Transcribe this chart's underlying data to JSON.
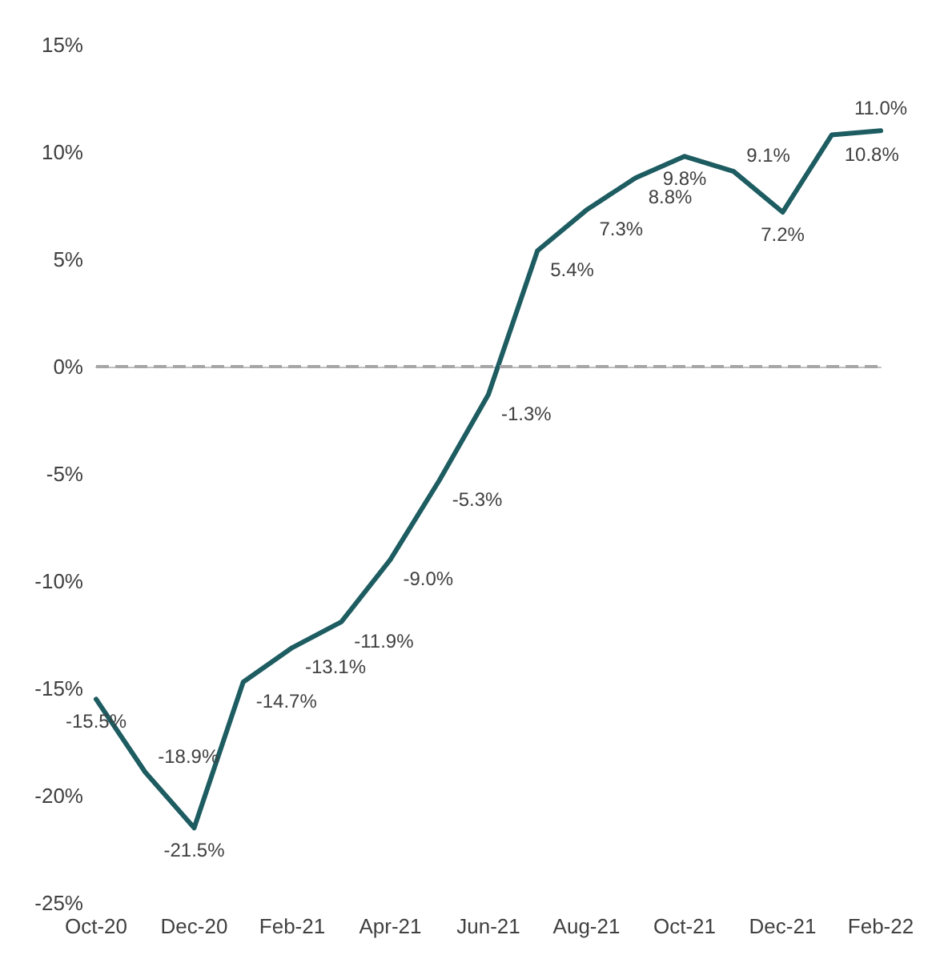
{
  "chart_data": {
    "type": "line",
    "categories": [
      "Oct-20",
      null,
      "Dec-20",
      null,
      "Feb-21",
      null,
      "Apr-21",
      null,
      "Jun-21",
      null,
      "Aug-21",
      null,
      "Oct-21",
      null,
      "Dec-21",
      null,
      "Feb-22"
    ],
    "series": [
      {
        "color": "#1d5c61",
        "values": [
          -15.5,
          -18.9,
          -21.5,
          -14.7,
          -13.1,
          -11.9,
          -9.0,
          -5.3,
          -1.3,
          5.4,
          7.3,
          8.8,
          9.8,
          9.1,
          7.2,
          10.8,
          11.0
        ],
        "value_labels": [
          "-15.5%",
          "-18.9%",
          "-21.5%",
          "-14.7%",
          "-13.1%",
          "-11.9%",
          "-9.0%",
          "-5.3%",
          "-1.3%",
          "5.4%",
          "7.3%",
          "8.8%",
          "9.8%",
          "9.1%",
          "7.2%",
          "10.8%",
          "11.0%"
        ]
      }
    ],
    "ylim": [
      -25,
      15
    ],
    "yticks": [
      {
        "value": -25,
        "label": "-25%"
      },
      {
        "value": -20,
        "label": "-20%"
      },
      {
        "value": -15,
        "label": "-15%"
      },
      {
        "value": -10,
        "label": "-10%"
      },
      {
        "value": -5,
        "label": "-5%"
      },
      {
        "value": 0,
        "label": "0%"
      },
      {
        "value": 5,
        "label": "5%"
      },
      {
        "value": 10,
        "label": "10%"
      },
      {
        "value": 15,
        "label": "15%"
      }
    ],
    "ref_lines": [
      {
        "axis": "y",
        "value": 0,
        "color": "#a6a6a6",
        "line_style": "dashed"
      }
    ],
    "grid": false,
    "marker": "none",
    "line_style": "solid"
  }
}
